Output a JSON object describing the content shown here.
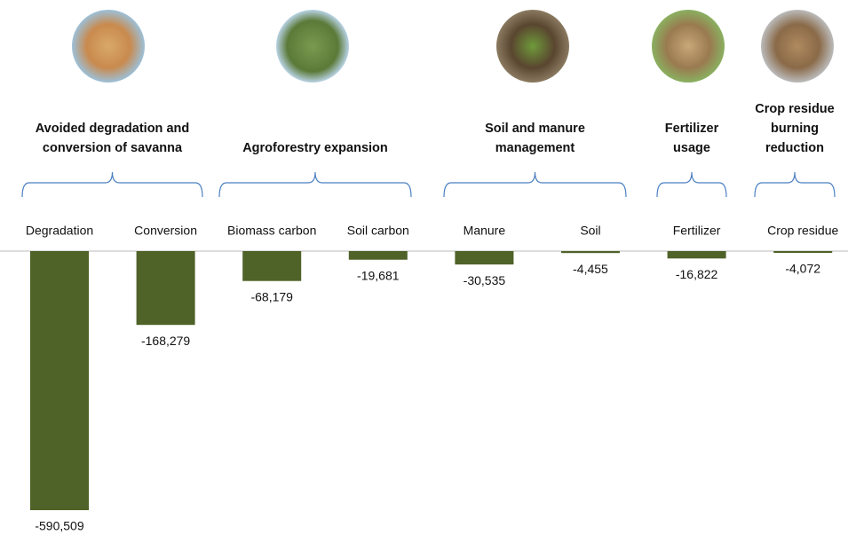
{
  "chart_data": {
    "type": "bar",
    "groups": [
      "Avoided degradation and conversion of savanna",
      "Agroforestry expansion",
      "Soil and manure management",
      "Fertilizer usage",
      "Crop residue burning reduction"
    ],
    "categories": [
      "Degradation",
      "Conversion",
      "Biomass carbon",
      "Soil carbon",
      "Manure",
      "Soil",
      "Fertilizer",
      "Crop residue"
    ],
    "values": [
      -590509,
      -168279,
      -68179,
      -19681,
      -30535,
      -4455,
      -16822,
      -4072
    ],
    "value_labels": [
      "-590,509",
      "-168,279",
      "-68,179",
      "-19,681",
      "-30,535",
      "-4,455",
      "-16,822",
      "-4,072"
    ],
    "color": "#4f6228"
  }
}
